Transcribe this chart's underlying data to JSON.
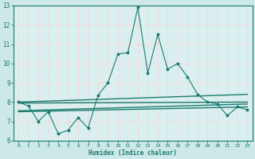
{
  "xlabel": "Humidex (Indice chaleur)",
  "xlim": [
    -0.5,
    23.5
  ],
  "ylim": [
    6,
    13
  ],
  "yticks": [
    6,
    7,
    8,
    9,
    10,
    11,
    12,
    13
  ],
  "xticks": [
    0,
    1,
    2,
    3,
    4,
    5,
    6,
    7,
    8,
    9,
    10,
    11,
    12,
    13,
    14,
    15,
    16,
    17,
    18,
    19,
    20,
    21,
    22,
    23
  ],
  "bg_color": "#cce8e8",
  "plot_bg": "#daf0f0",
  "grid_color": "#f0dada",
  "line_color": "#1a7a6e",
  "main_line": {
    "x": [
      0,
      1,
      2,
      3,
      4,
      5,
      6,
      7,
      8,
      9,
      10,
      11,
      12,
      13,
      14,
      15,
      16,
      17,
      18,
      19,
      20,
      21,
      22,
      23
    ],
    "y": [
      8.0,
      7.8,
      7.0,
      7.5,
      6.35,
      6.55,
      7.2,
      6.65,
      8.35,
      9.0,
      10.5,
      10.55,
      12.9,
      9.5,
      11.5,
      9.7,
      10.0,
      9.3,
      8.4,
      8.0,
      7.9,
      7.3,
      7.75,
      7.6
    ]
  },
  "ref_lines": [
    {
      "x": [
        0,
        23
      ],
      "y": [
        8.0,
        8.4
      ],
      "lw": 1.0
    },
    {
      "x": [
        0,
        23
      ],
      "y": [
        7.95,
        8.0
      ],
      "lw": 1.0
    },
    {
      "x": [
        0,
        23
      ],
      "y": [
        7.55,
        7.9
      ],
      "lw": 1.0
    },
    {
      "x": [
        0,
        23
      ],
      "y": [
        7.5,
        7.75
      ],
      "lw": 1.0
    }
  ]
}
